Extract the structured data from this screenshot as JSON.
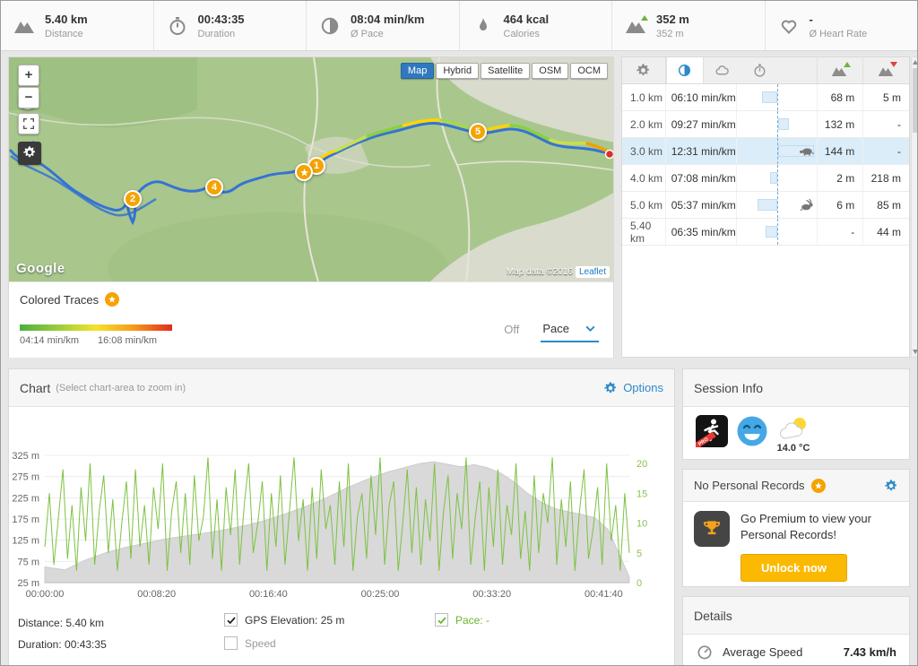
{
  "stats": [
    {
      "value": "5.40 km",
      "label": "Distance",
      "icon": "mountains-icon"
    },
    {
      "value": "00:43:35",
      "label": "Duration",
      "icon": "stopwatch-icon"
    },
    {
      "value": "08:04 min/km",
      "label": "Ø Pace",
      "icon": "pace-icon"
    },
    {
      "value": "464 kcal",
      "label": "Calories",
      "icon": "flame-icon"
    },
    {
      "value": "352 m",
      "label": "352 m",
      "icon": "elevation-icon"
    },
    {
      "value": "-",
      "label": "Ø Heart Rate",
      "icon": "heart-icon"
    }
  ],
  "map": {
    "layer_buttons": [
      "Map",
      "Hybrid",
      "Satellite",
      "OSM",
      "OCM"
    ],
    "active_layer": "Map",
    "zoom_in": "+",
    "zoom_out": "−",
    "markers": [
      {
        "label": "1"
      },
      {
        "label": "2"
      },
      {
        "label": "3"
      },
      {
        "label": "4"
      },
      {
        "label": "5"
      }
    ],
    "google_logo": "Google",
    "attribution": "Map data ©2016",
    "leaflet": "Leaflet"
  },
  "colored_traces": {
    "title": "Colored Traces",
    "legend_min": "04:14 min/km",
    "legend_max": "16:08 min/km",
    "off_label": "Off",
    "mode_label": "Pace"
  },
  "splits": {
    "avg_pace_s": 484,
    "rows": [
      {
        "km": "1.0 km",
        "pace": "06:10 min/km",
        "pace_s": 370,
        "gain": "68 m",
        "loss": "5 m"
      },
      {
        "km": "2.0 km",
        "pace": "09:27 min/km",
        "pace_s": 567,
        "gain": "132 m",
        "loss": "-"
      },
      {
        "km": "3.0 km",
        "pace": "12:31 min/km",
        "pace_s": 751,
        "gain": "144 m",
        "loss": "-",
        "animal": "turtle",
        "highlight": true
      },
      {
        "km": "4.0 km",
        "pace": "07:08 min/km",
        "pace_s": 428,
        "gain": "2 m",
        "loss": "218 m"
      },
      {
        "km": "5.0 km",
        "pace": "05:37 min/km",
        "pace_s": 337,
        "gain": "6 m",
        "loss": "85 m",
        "animal": "rabbit"
      },
      {
        "km": "5.40 km",
        "pace": "06:35 min/km",
        "pace_s": 395,
        "gain": "-",
        "loss": "44 m"
      }
    ]
  },
  "chart_panel": {
    "title": "Chart",
    "subtitle": "(Select chart-area to zoom in)",
    "options_label": "Options",
    "distance_label": "Distance: 5.40 km",
    "duration_label": "Duration: 00:43:35",
    "legend": [
      {
        "label": "GPS Elevation: 25 m",
        "checked": true,
        "color": "#333333"
      },
      {
        "label": "Speed",
        "checked": false,
        "color": "#9a9a9a"
      },
      {
        "label": "Pace: -",
        "checked": true,
        "color": "#6cb52d"
      }
    ]
  },
  "chart_data": {
    "type": "line",
    "title": "",
    "grid": "horizontal",
    "x_ticks": [
      "00:00:00",
      "00:08:20",
      "00:16:40",
      "00:25:00",
      "00:33:20",
      "00:41:40"
    ],
    "x_tick_min": [
      0,
      8.333,
      16.667,
      25,
      33.333,
      41.667
    ],
    "x_max_min": 43.58,
    "left_axis": {
      "label": "GPS Elevation",
      "ticks": [
        "25 m",
        "75 m",
        "125 m",
        "175 m",
        "225 m",
        "275 m",
        "325 m"
      ],
      "min": 25,
      "step": 50
    },
    "right_axis": {
      "label": "Pace",
      "ticks": [
        "0",
        "5",
        "10",
        "15",
        "20"
      ],
      "min": 0,
      "step": 5
    },
    "series": [
      {
        "name": "GPS Elevation",
        "type": "area",
        "color": "#d9d9d9",
        "x": [
          0,
          1.5,
          3,
          4.5,
          6,
          7.5,
          9,
          10.5,
          12,
          13.5,
          15,
          16.5,
          18,
          19.5,
          21,
          22.5,
          24,
          25.5,
          27,
          28,
          29,
          30,
          31,
          32,
          33,
          34,
          35,
          36,
          37,
          38,
          39,
          40,
          41,
          42,
          43,
          43.58
        ],
        "y": [
          62,
          55,
          78,
          95,
          108,
          118,
          128,
          135,
          142,
          150,
          160,
          172,
          188,
          205,
          225,
          248,
          268,
          285,
          298,
          306,
          310,
          304,
          298,
          303,
          296,
          283,
          262,
          235,
          215,
          200,
          192,
          186,
          178,
          150,
          80,
          38
        ]
      },
      {
        "name": "Pace",
        "type": "line",
        "color": "#7dc242",
        "y": [
          6,
          15,
          3,
          11,
          19,
          4,
          13,
          2,
          16,
          7,
          20,
          3,
          12,
          18,
          5,
          14,
          2,
          10,
          17,
          4,
          19,
          6,
          13,
          3,
          16,
          9,
          20,
          2,
          12,
          17,
          5,
          15,
          3,
          18,
          7,
          11,
          21,
          4,
          14,
          2,
          16,
          8,
          19,
          3,
          13,
          20,
          5,
          10,
          17,
          2,
          15,
          6,
          18,
          3,
          12,
          21,
          7,
          14,
          2,
          16,
          4,
          19,
          9,
          13,
          3,
          17,
          6,
          20,
          2,
          11,
          15,
          4,
          18,
          8,
          21,
          3,
          13,
          17,
          2,
          10,
          19,
          5,
          16,
          3,
          14,
          7,
          20,
          2,
          12,
          18,
          4,
          15,
          9,
          21,
          3,
          11,
          17,
          2,
          16,
          6,
          19,
          3,
          13,
          8,
          20,
          4,
          12,
          2,
          18,
          5,
          15,
          10,
          21,
          3,
          14,
          6,
          17,
          2,
          12,
          19,
          4,
          9,
          16,
          3,
          20,
          7,
          13,
          2,
          15,
          5
        ]
      }
    ]
  },
  "session_info": {
    "title": "Session Info",
    "temperature": "14.0 °C"
  },
  "records": {
    "title": "No Personal Records",
    "text": "Go Premium to view your Personal Records!",
    "button": "Unlock now"
  },
  "details": {
    "title": "Details",
    "rows": [
      {
        "label": "Average Speed",
        "value": "7.43 km/h"
      }
    ]
  }
}
